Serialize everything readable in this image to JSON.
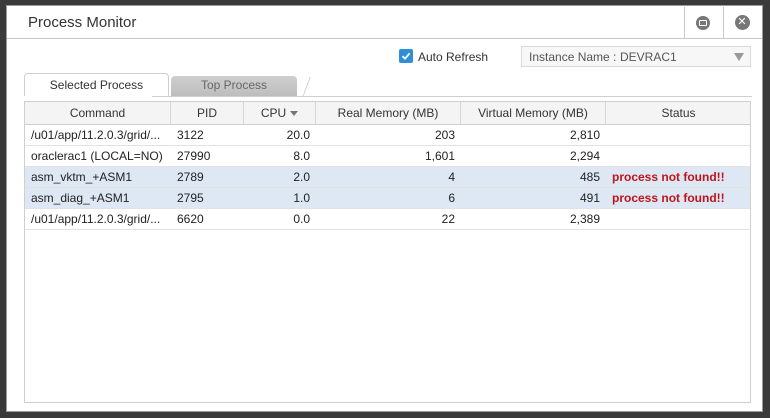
{
  "window": {
    "title": "Process Monitor"
  },
  "toolbar": {
    "auto_refresh_label": "Auto Refresh",
    "auto_refresh_checked": true,
    "instance_label": "Instance Name :",
    "instance_value": "DEVRAC1"
  },
  "tabs": [
    {
      "label": "Selected Process",
      "active": true
    },
    {
      "label": "Top Process",
      "active": false
    }
  ],
  "table": {
    "columns": [
      "Command",
      "PID",
      "CPU",
      "Real Memory (MB)",
      "Virtual Memory (MB)",
      "Status"
    ],
    "sort_column": "CPU",
    "rows": [
      {
        "command": "/u01/app/11.2.0.3/grid/...",
        "pid": "3122",
        "cpu": "20.0",
        "real": "203",
        "virtual": "2,810",
        "status": "",
        "highlighted": false
      },
      {
        "command": "oraclerac1 (LOCAL=NO)",
        "pid": "27990",
        "cpu": "8.0",
        "real": "1,601",
        "virtual": "2,294",
        "status": "",
        "highlighted": false
      },
      {
        "command": "asm_vktm_+ASM1",
        "pid": "2789",
        "cpu": "2.0",
        "real": "4",
        "virtual": "485",
        "status": "process not found!!",
        "highlighted": true
      },
      {
        "command": "asm_diag_+ASM1",
        "pid": "2795",
        "cpu": "1.0",
        "real": "6",
        "virtual": "491",
        "status": "process not found!!",
        "highlighted": true
      },
      {
        "command": "/u01/app/11.2.0.3/grid/...",
        "pid": "6620",
        "cpu": "0.0",
        "real": "22",
        "virtual": "2,389",
        "status": "",
        "highlighted": false
      }
    ]
  },
  "colors": {
    "status_error": "#c0141b",
    "row_highlight": "#dde8f4",
    "checkbox": "#2f8fd6"
  }
}
